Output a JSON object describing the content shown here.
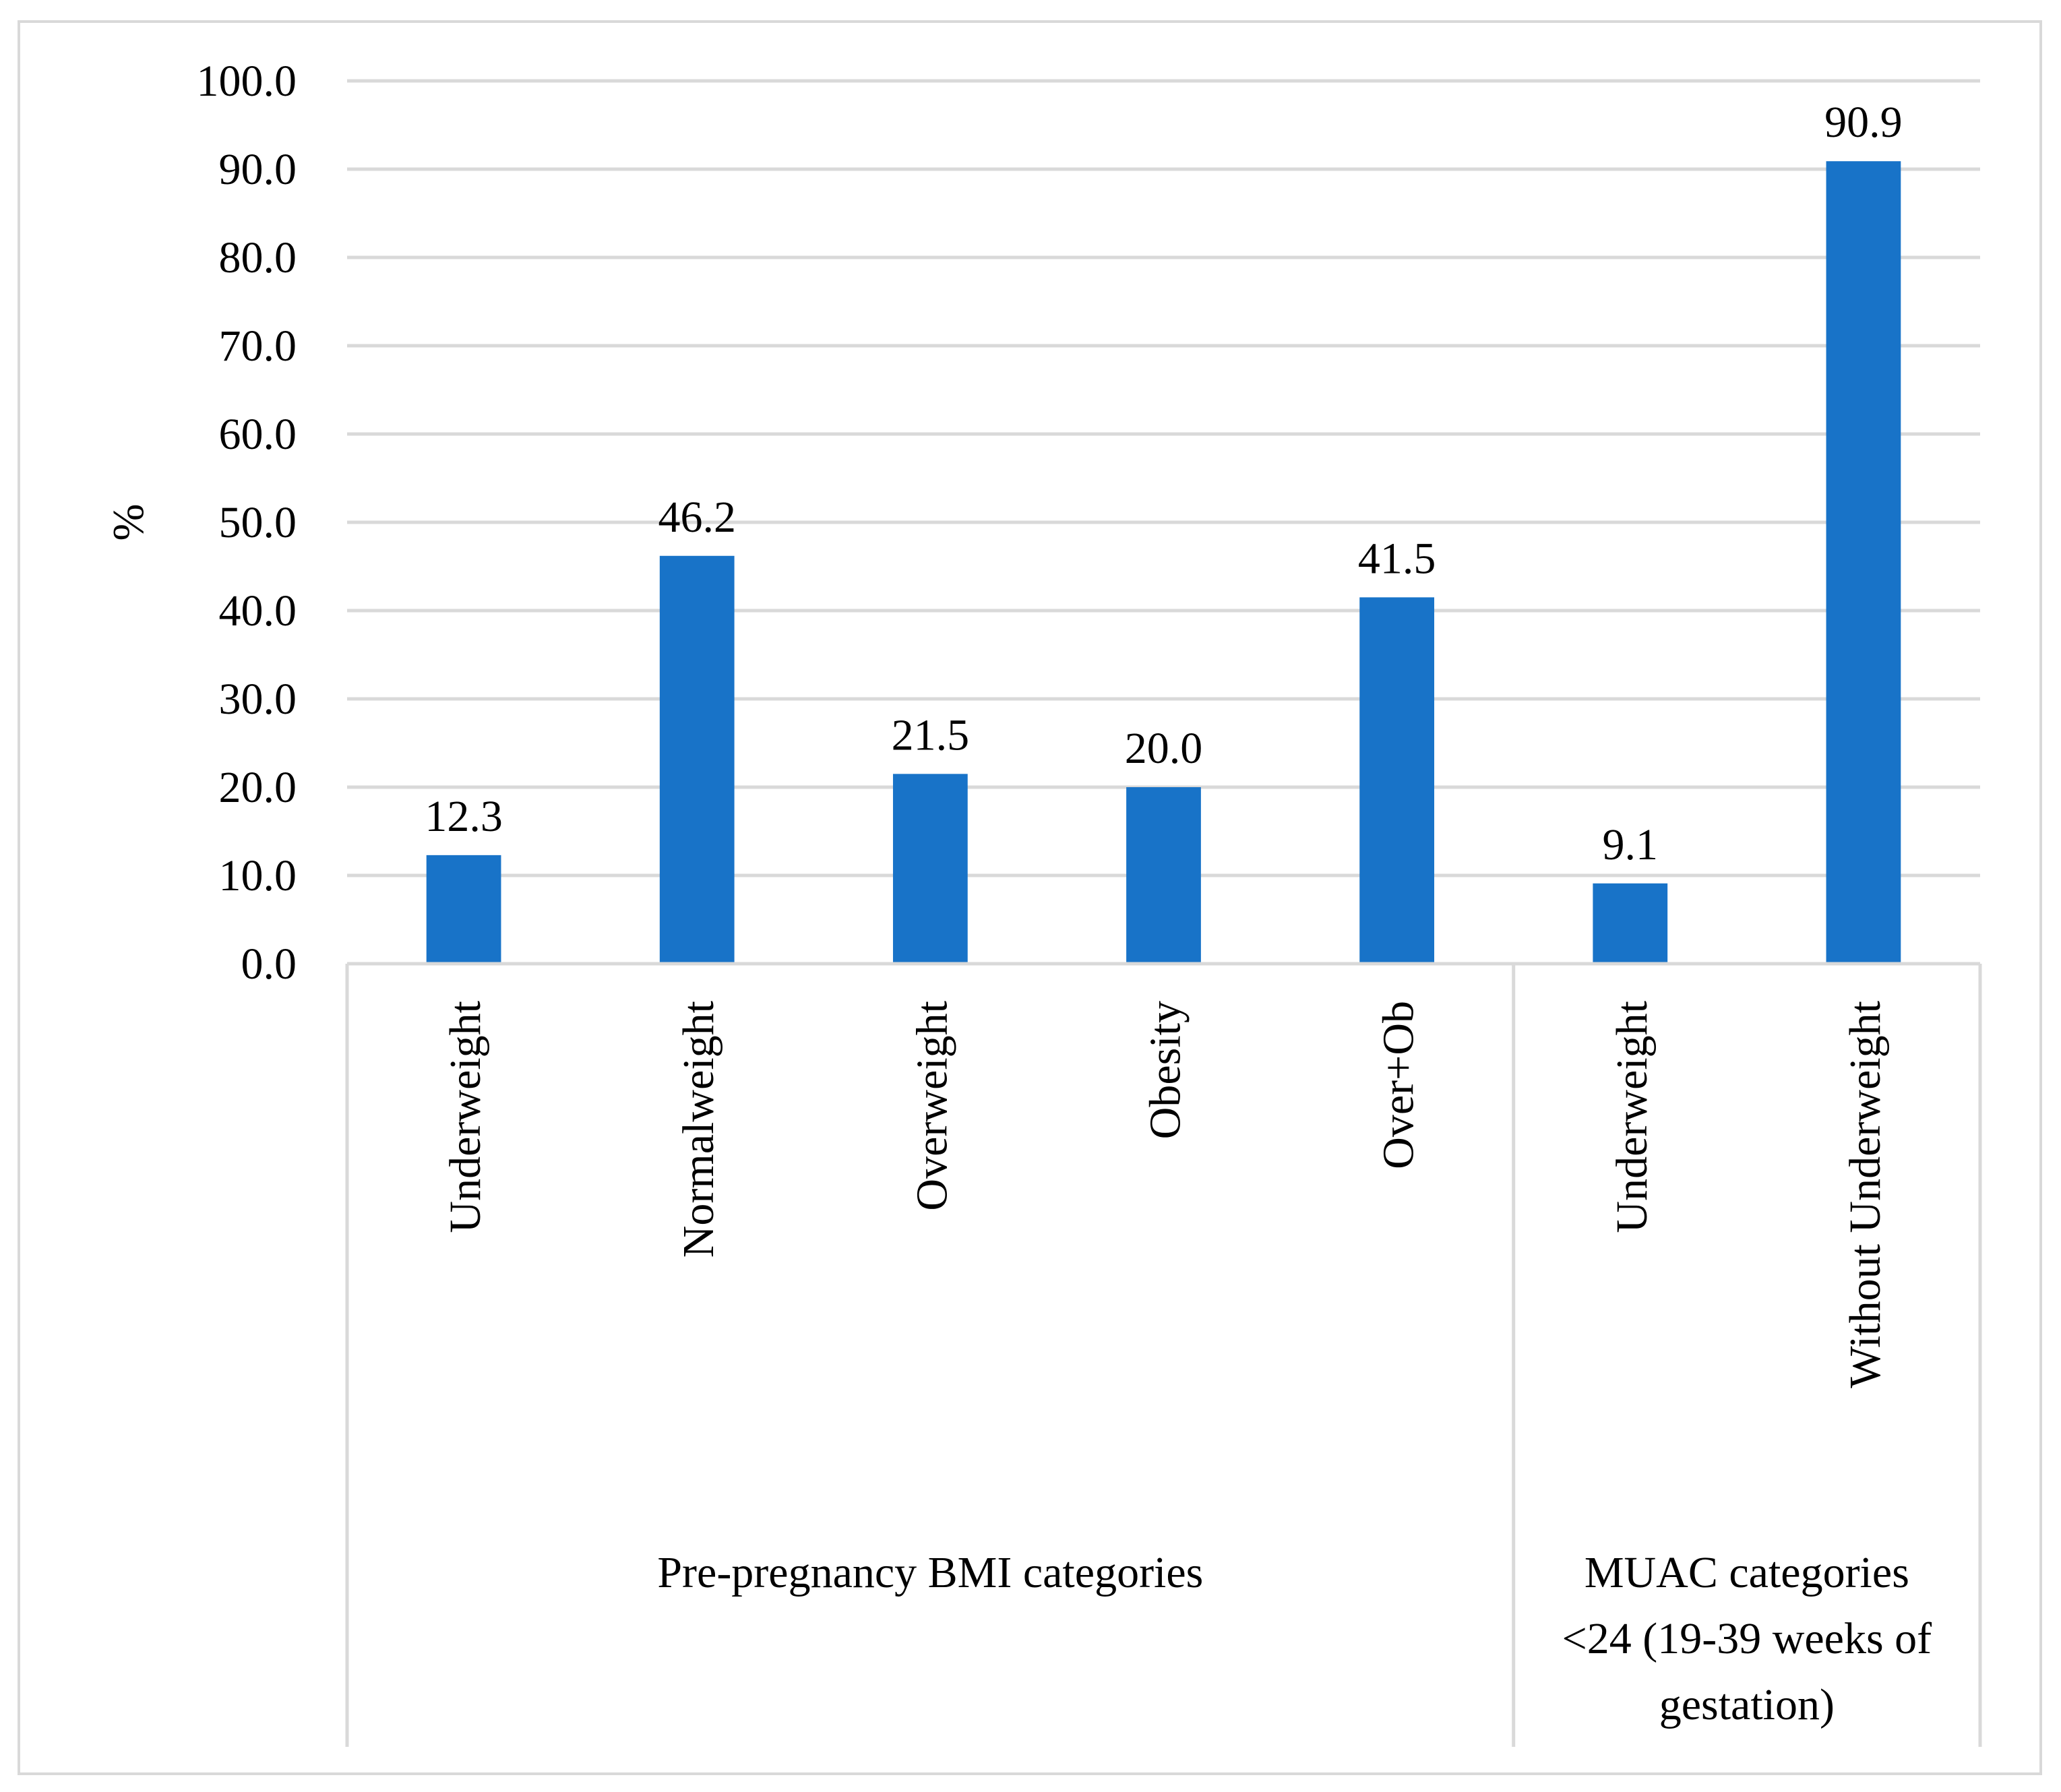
{
  "chart_data": {
    "type": "bar",
    "title": "",
    "ylabel": "%",
    "xlabel": "",
    "ylim": [
      0,
      100
    ],
    "ytick_step": 10,
    "ytick_labels": [
      "0.0",
      "10.0",
      "20.0",
      "30.0",
      "40.0",
      "50.0",
      "60.0",
      "70.0",
      "80.0",
      "90.0",
      "100.0"
    ],
    "grid": true,
    "legend": "none",
    "bar_color": "#1873c8",
    "grid_color": "#d9d9d9",
    "categories": [
      "Underweight",
      "Normalweight",
      "Overweight",
      "Obesity",
      "Over+Ob",
      "Underweight",
      "Without Underweight"
    ],
    "values": [
      12.3,
      46.2,
      21.5,
      20.0,
      41.5,
      9.1,
      90.9
    ],
    "data_labels": [
      "12.3",
      "46.2",
      "21.5",
      "20.0",
      "41.5",
      "9.1",
      "90.9"
    ],
    "groups": [
      {
        "lines": [
          "Pre-pregnancy BMI categories"
        ],
        "start": 0,
        "end": 4
      },
      {
        "lines": [
          "MUAC categories",
          "<24 (19-39 weeks of",
          "gestation)"
        ],
        "start": 5,
        "end": 6
      }
    ]
  }
}
